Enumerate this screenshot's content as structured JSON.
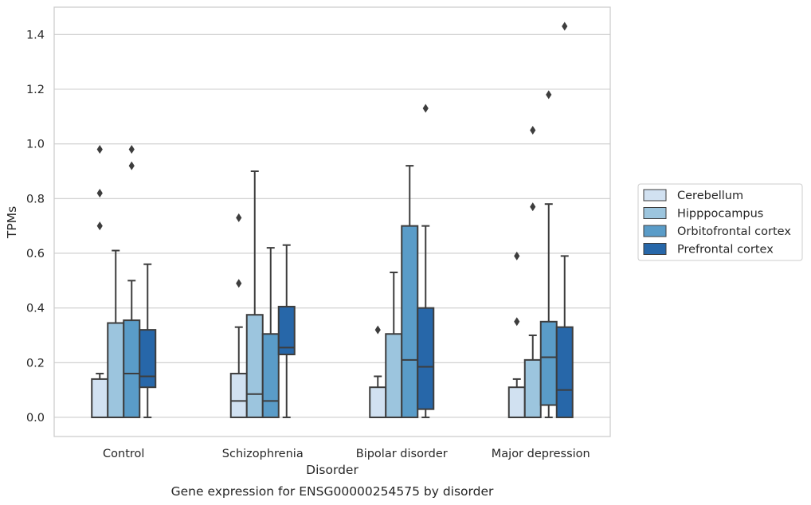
{
  "chart_data": {
    "type": "box",
    "xlabel": "Disorder",
    "ylabel": "TPMs",
    "caption": "Gene expression for ENSG00000254575 by disorder",
    "ylim": [
      -0.07,
      1.5
    ],
    "yticks": [
      "0.0",
      "0.2",
      "0.4",
      "0.6",
      "0.8",
      "1.0",
      "1.2",
      "1.4"
    ],
    "grid": "horizontal",
    "legend_position": "right",
    "categories": [
      "Control",
      "Schizophrenia",
      "Bipolar disorder",
      "Major depression"
    ],
    "series": [
      {
        "name": "Cerebellum",
        "color": "#d1e1f1",
        "boxes": [
          {
            "whislo": 0.0,
            "q1": 0.0,
            "med": 0.0,
            "q3": 0.14,
            "whishi": 0.16,
            "fliers": [
              0.7,
              0.82,
              0.98
            ]
          },
          {
            "whislo": 0.0,
            "q1": 0.0,
            "med": 0.06,
            "q3": 0.16,
            "whishi": 0.33,
            "fliers": [
              0.49,
              0.73
            ]
          },
          {
            "whislo": 0.0,
            "q1": 0.0,
            "med": 0.0,
            "q3": 0.11,
            "whishi": 0.15,
            "fliers": [
              0.32
            ]
          },
          {
            "whislo": 0.0,
            "q1": 0.0,
            "med": 0.0,
            "q3": 0.11,
            "whishi": 0.14,
            "fliers": [
              0.35,
              0.59
            ]
          }
        ]
      },
      {
        "name": "Hipppocampus",
        "color": "#9cc5de",
        "boxes": [
          {
            "whislo": 0.0,
            "q1": 0.0,
            "med": 0.0,
            "q3": 0.345,
            "whishi": 0.61,
            "fliers": []
          },
          {
            "whislo": 0.0,
            "q1": 0.0,
            "med": 0.085,
            "q3": 0.375,
            "whishi": 0.9,
            "fliers": []
          },
          {
            "whislo": 0.0,
            "q1": 0.0,
            "med": 0.0,
            "q3": 0.305,
            "whishi": 0.53,
            "fliers": []
          },
          {
            "whislo": 0.0,
            "q1": 0.0,
            "med": 0.0,
            "q3": 0.21,
            "whishi": 0.3,
            "fliers": [
              0.77,
              1.05
            ]
          }
        ]
      },
      {
        "name": "Orbitofrontal cortex",
        "color": "#5a9cc8",
        "boxes": [
          {
            "whislo": 0.0,
            "q1": 0.0,
            "med": 0.16,
            "q3": 0.355,
            "whishi": 0.5,
            "fliers": [
              0.92,
              0.98
            ]
          },
          {
            "whislo": 0.0,
            "q1": 0.0,
            "med": 0.06,
            "q3": 0.305,
            "whishi": 0.62,
            "fliers": []
          },
          {
            "whislo": 0.0,
            "q1": 0.0,
            "med": 0.21,
            "q3": 0.7,
            "whishi": 0.92,
            "fliers": []
          },
          {
            "whislo": 0.0,
            "q1": 0.045,
            "med": 0.22,
            "q3": 0.35,
            "whishi": 0.78,
            "fliers": [
              1.18
            ]
          }
        ]
      },
      {
        "name": "Prefrontal cortex",
        "color": "#2767a9",
        "boxes": [
          {
            "whislo": 0.0,
            "q1": 0.11,
            "med": 0.15,
            "q3": 0.32,
            "whishi": 0.56,
            "fliers": []
          },
          {
            "whislo": 0.0,
            "q1": 0.23,
            "med": 0.255,
            "q3": 0.405,
            "whishi": 0.63,
            "fliers": []
          },
          {
            "whislo": 0.0,
            "q1": 0.03,
            "med": 0.185,
            "q3": 0.4,
            "whishi": 0.7,
            "fliers": [
              1.13
            ]
          },
          {
            "whislo": 0.0,
            "q1": 0.0,
            "med": 0.1,
            "q3": 0.33,
            "whishi": 0.59,
            "fliers": [
              1.43
            ]
          }
        ]
      }
    ]
  }
}
